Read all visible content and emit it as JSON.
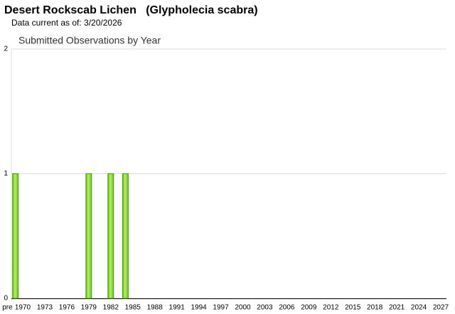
{
  "chart_data": {
    "type": "bar",
    "title": "Desert Rockscab Lichen   (Glypholecia scabra)",
    "subtitle": "Data current as of: 3/20/2026",
    "chart_title": "Submitted Observations by Year",
    "categories": [
      "pre",
      "1970",
      null,
      null,
      "1973",
      null,
      null,
      "1976",
      null,
      null,
      "1979",
      null,
      null,
      "1982",
      null,
      null,
      "1985",
      null,
      null,
      "1988",
      null,
      null,
      "1991",
      null,
      null,
      "1994",
      null,
      null,
      "1997",
      null,
      null,
      "2000",
      null,
      null,
      "2003",
      null,
      null,
      "2006",
      null,
      null,
      "2009",
      null,
      null,
      "2012",
      null,
      null,
      "2015",
      null,
      null,
      "2018",
      null,
      null,
      "2021",
      null,
      null,
      "2024",
      null,
      null,
      "2027"
    ],
    "values": [
      1,
      0,
      0,
      0,
      0,
      0,
      0,
      0,
      0,
      0,
      1,
      0,
      0,
      1,
      0,
      1,
      0,
      0,
      0,
      0,
      0,
      0,
      0,
      0,
      0,
      0,
      0,
      0,
      0,
      0,
      0,
      0,
      0,
      0,
      0,
      0,
      0,
      0,
      0,
      0,
      0,
      0,
      0,
      0,
      0,
      0,
      0,
      0,
      0,
      0,
      0,
      0,
      0,
      0,
      0,
      0,
      0,
      0,
      0
    ],
    "color": "#7ed321",
    "ylim": [
      0,
      2
    ],
    "yticks": [
      0,
      1,
      2
    ],
    "grid": true
  }
}
